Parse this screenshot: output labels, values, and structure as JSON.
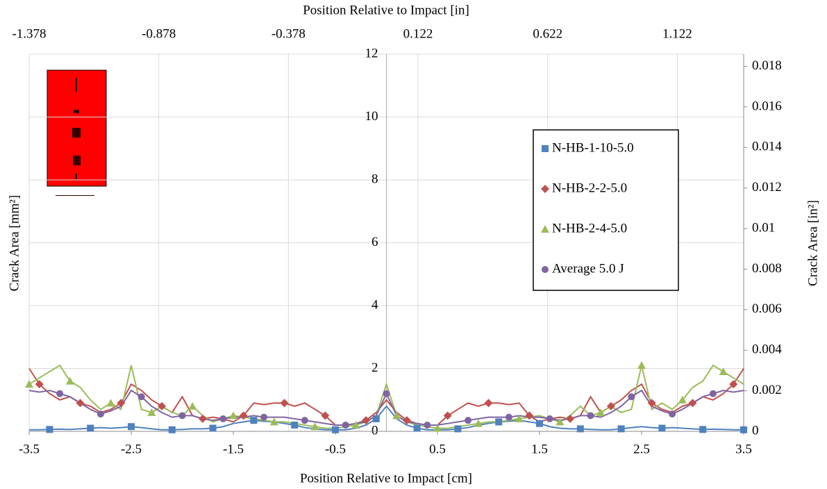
{
  "chart_data": {
    "type": "line",
    "x_label": "Position Relative to Impact [cm]",
    "x2_label": "Position Relative to Impact [in]",
    "y_label": "Crack Area [mm²]",
    "y2_label": "Crack Area [in²]",
    "x": [
      -3.5,
      -3.4,
      -3.3,
      -3.2,
      -3.1,
      -3.0,
      -2.9,
      -2.8,
      -2.7,
      -2.6,
      -2.5,
      -2.4,
      -2.3,
      -2.2,
      -2.1,
      -2.0,
      -1.9,
      -1.8,
      -1.7,
      -1.6,
      -1.5,
      -1.4,
      -1.3,
      -1.2,
      -1.1,
      -1.0,
      -0.9,
      -0.8,
      -0.7,
      -0.6,
      -0.5,
      -0.4,
      -0.3,
      -0.2,
      -0.1,
      0,
      0.1,
      0.2,
      0.3,
      0.4,
      0.5,
      0.6,
      0.7,
      0.8,
      0.9,
      1.0,
      1.1,
      1.2,
      1.3,
      1.4,
      1.5,
      1.6,
      1.7,
      1.8,
      1.9,
      2.0,
      2.1,
      2.2,
      2.3,
      2.4,
      2.5,
      2.6,
      2.7,
      2.8,
      2.9,
      3.0,
      3.1,
      3.2,
      3.3,
      3.4,
      3.5
    ],
    "series": [
      {
        "name": "N-HB-1-10-5.0",
        "color": "#4f81bd",
        "marker": "square",
        "values": [
          0.05,
          0.05,
          0.06,
          0.07,
          0.06,
          0.08,
          0.1,
          0.12,
          0.1,
          0.12,
          0.15,
          0.12,
          0.08,
          0.05,
          0.05,
          0.06,
          0.08,
          0.08,
          0.1,
          0.15,
          0.25,
          0.3,
          0.35,
          0.32,
          0.3,
          0.25,
          0.2,
          0.12,
          0.08,
          0.05,
          0.05,
          0.05,
          0.1,
          0.2,
          0.4,
          0.8,
          0.4,
          0.2,
          0.1,
          0.05,
          0.05,
          0.05,
          0.08,
          0.12,
          0.2,
          0.25,
          0.3,
          0.32,
          0.35,
          0.3,
          0.25,
          0.15,
          0.1,
          0.08,
          0.08,
          0.06,
          0.05,
          0.05,
          0.08,
          0.12,
          0.15,
          0.12,
          0.1,
          0.12,
          0.1,
          0.08,
          0.06,
          0.07,
          0.06,
          0.05,
          0.05
        ]
      },
      {
        "name": "N-HB-2-2-5.0",
        "color": "#c0504d",
        "marker": "diamond",
        "values": [
          2.0,
          1.5,
          1.2,
          1.0,
          1.1,
          0.9,
          0.8,
          0.6,
          0.7,
          0.9,
          1.5,
          1.3,
          1.0,
          0.8,
          0.6,
          1.1,
          0.5,
          0.4,
          0.45,
          0.4,
          0.3,
          0.5,
          0.9,
          0.85,
          0.9,
          0.9,
          0.8,
          0.9,
          0.7,
          0.5,
          0.2,
          0.2,
          0.25,
          0.35,
          0.6,
          1.0,
          0.6,
          0.35,
          0.25,
          0.2,
          0.2,
          0.5,
          0.7,
          0.9,
          0.8,
          0.9,
          0.9,
          0.85,
          0.9,
          0.5,
          0.3,
          0.4,
          0.45,
          0.4,
          0.5,
          1.1,
          0.6,
          0.8,
          1.0,
          1.3,
          1.5,
          0.9,
          0.7,
          0.6,
          0.8,
          0.9,
          1.1,
          1.0,
          1.2,
          1.5,
          2.0
        ]
      },
      {
        "name": "N-HB-2-4-5.0",
        "color": "#9bbb59",
        "marker": "triangle",
        "values": [
          1.5,
          1.7,
          1.9,
          2.1,
          1.6,
          1.4,
          1.0,
          0.7,
          0.9,
          0.7,
          2.1,
          0.7,
          0.6,
          0.8,
          0.6,
          0.5,
          0.8,
          0.5,
          0.3,
          0.4,
          0.5,
          0.45,
          0.4,
          0.35,
          0.3,
          0.3,
          0.25,
          0.2,
          0.15,
          0.1,
          0.1,
          0.15,
          0.2,
          0.3,
          0.5,
          1.5,
          0.5,
          0.3,
          0.2,
          0.15,
          0.1,
          0.1,
          0.15,
          0.2,
          0.25,
          0.3,
          0.3,
          0.35,
          0.4,
          0.45,
          0.5,
          0.4,
          0.3,
          0.5,
          0.8,
          0.5,
          0.6,
          0.8,
          0.6,
          0.7,
          2.1,
          0.7,
          0.9,
          0.7,
          1.0,
          1.4,
          1.6,
          2.1,
          1.9,
          1.7,
          1.5
        ]
      },
      {
        "name": "Average 5.0 J",
        "color": "#8064a2",
        "marker": "circle",
        "values": [
          1.3,
          1.25,
          1.3,
          1.2,
          1.1,
          0.9,
          0.7,
          0.55,
          0.65,
          0.8,
          1.3,
          1.1,
          0.8,
          0.6,
          0.45,
          0.5,
          0.5,
          0.4,
          0.35,
          0.4,
          0.45,
          0.45,
          0.5,
          0.45,
          0.45,
          0.45,
          0.4,
          0.35,
          0.3,
          0.25,
          0.2,
          0.2,
          0.25,
          0.3,
          0.5,
          1.2,
          0.5,
          0.3,
          0.25,
          0.2,
          0.2,
          0.25,
          0.3,
          0.35,
          0.4,
          0.45,
          0.45,
          0.45,
          0.5,
          0.45,
          0.45,
          0.4,
          0.35,
          0.4,
          0.5,
          0.5,
          0.45,
          0.6,
          0.8,
          1.1,
          1.3,
          0.8,
          0.65,
          0.55,
          0.7,
          0.9,
          1.1,
          1.2,
          1.3,
          1.25,
          1.3
        ]
      }
    ],
    "xlim": [
      -3.5,
      3.5
    ],
    "xticks": [
      -3.5,
      -2.5,
      -1.5,
      -0.5,
      0.5,
      1.5,
      2.5,
      3.5
    ],
    "x2lim": [
      -1.378,
      1.378
    ],
    "x2ticks": [
      -1.378,
      -0.878,
      -0.378,
      0.122,
      0.622,
      1.122
    ],
    "ylim": [
      0,
      12
    ],
    "yticks": [
      0,
      2,
      4,
      6,
      8,
      10,
      12
    ],
    "y2lim": [
      0,
      0.0186
    ],
    "y2ticks": [
      0,
      0.002,
      0.004,
      0.006,
      0.008,
      0.01,
      0.012,
      0.014,
      0.016,
      0.018
    ],
    "grid": true,
    "legend": "right"
  }
}
